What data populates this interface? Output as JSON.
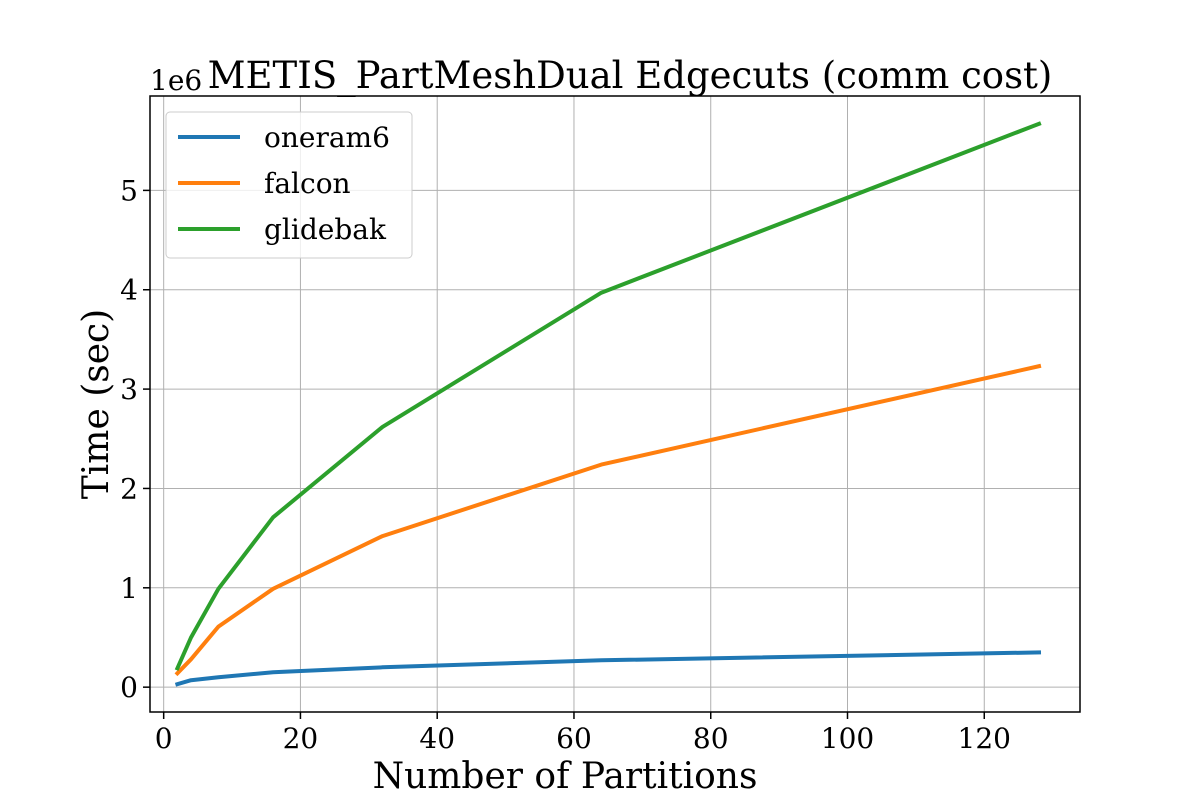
{
  "chart_data": {
    "type": "line",
    "title": "METIS_PartMeshDual Edgecuts (comm cost)",
    "xlabel": "Number of Partitions",
    "ylabel": "Time (sec)",
    "y_offset_label": "1e6",
    "xlim": [
      -2,
      134
    ],
    "ylim": [
      -0.25,
      5.95
    ],
    "xticks": [
      0,
      20,
      40,
      60,
      80,
      100,
      120
    ],
    "yticks": [
      0,
      1,
      2,
      3,
      4,
      5
    ],
    "grid": true,
    "legend_position": "upper-left",
    "x": [
      2,
      4,
      8,
      16,
      32,
      64,
      128
    ],
    "series": [
      {
        "name": "oneram6",
        "color": "#1f77b4",
        "values": [
          0.03,
          0.07,
          0.1,
          0.15,
          0.2,
          0.27,
          0.35
        ]
      },
      {
        "name": "falcon",
        "color": "#ff7f0e",
        "values": [
          0.14,
          0.28,
          0.61,
          0.99,
          1.52,
          2.24,
          3.23
        ]
      },
      {
        "name": "glidebak",
        "color": "#2ca02c",
        "values": [
          0.19,
          0.5,
          0.99,
          1.71,
          2.62,
          3.97,
          5.67
        ]
      }
    ]
  }
}
